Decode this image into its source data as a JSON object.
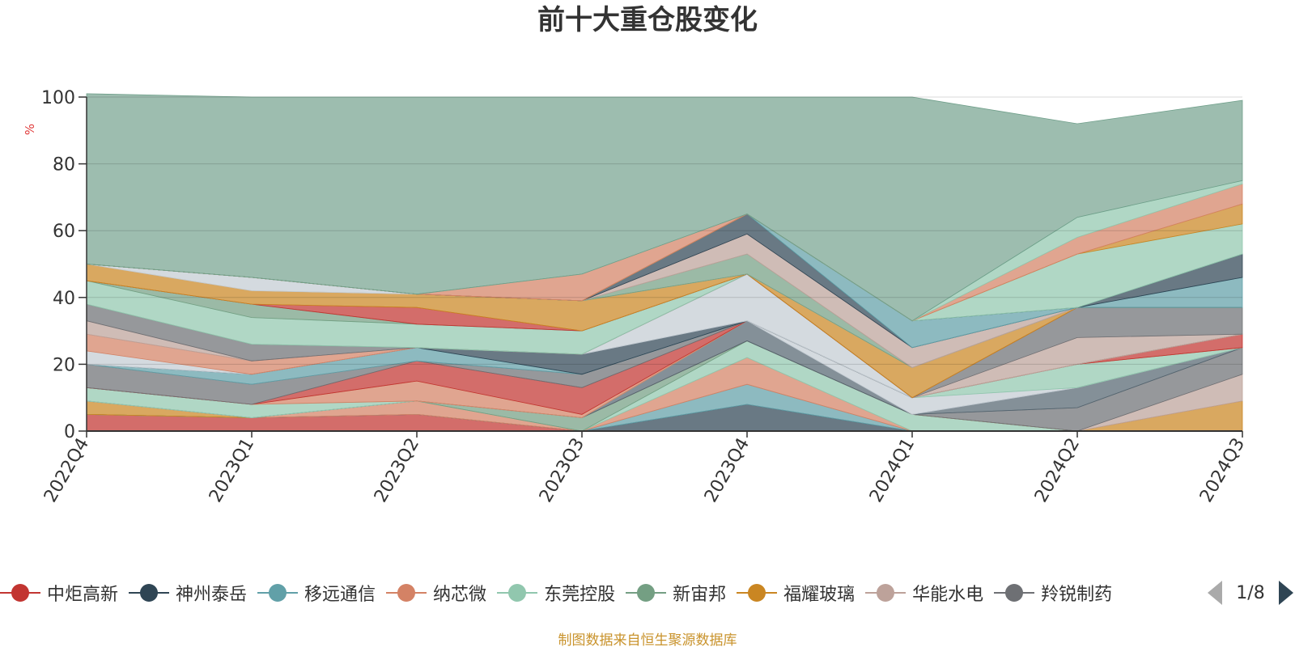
{
  "chart_data": {
    "type": "area",
    "stacked": true,
    "title": "前十大重仓股变化",
    "xlabel": "",
    "ylabel": "%",
    "ylim": [
      0,
      100
    ],
    "yticks": [
      0,
      20,
      40,
      60,
      80,
      100
    ],
    "grid": true,
    "categories": [
      "2022Q4",
      "2023Q1",
      "2023Q2",
      "2023Q3",
      "2023Q4",
      "2024Q1",
      "2024Q2",
      "2024Q3"
    ],
    "series": [
      {
        "name": "中炬高新",
        "color": "#c23531",
        "values": [
          5,
          4,
          5,
          0,
          0,
          0,
          0,
          0
        ]
      },
      {
        "name": "神州泰岳",
        "color": "#2f4554",
        "values": [
          0,
          0,
          0,
          0,
          8,
          0,
          0,
          0
        ]
      },
      {
        "name": "移远通信",
        "color": "#61a0a8",
        "values": [
          0,
          0,
          0,
          0,
          6,
          0,
          0,
          0
        ]
      },
      {
        "name": "纳芯微",
        "color": "#d48265",
        "values": [
          0,
          0,
          4,
          0,
          8,
          0,
          0,
          0
        ]
      },
      {
        "name": "东莞控股",
        "color": "#91c7ae",
        "values": [
          0,
          0,
          0,
          0,
          5,
          5,
          0,
          0
        ]
      },
      {
        "name": "新宙邦",
        "color": "#749f83",
        "values": [
          0,
          0,
          0,
          4,
          0,
          0,
          0,
          0
        ]
      },
      {
        "name": "福耀玻璃",
        "color": "#ca8622",
        "values": [
          4,
          0,
          0,
          0,
          0,
          0,
          0,
          9
        ]
      },
      {
        "name": "华能水电",
        "color": "#bda29a",
        "values": [
          0,
          0,
          0,
          0,
          0,
          0,
          0,
          8
        ]
      },
      {
        "name": "羚锐制药",
        "color": "#6e7074",
        "values": [
          0,
          0,
          0,
          0,
          0,
          0,
          7,
          8
        ]
      },
      {
        "name": "",
        "color": "#546570",
        "values": [
          0,
          0,
          0,
          0,
          6,
          0,
          6,
          0
        ]
      },
      {
        "name": "",
        "color": "#c4ccd3",
        "values": [
          0,
          0,
          0,
          0,
          0,
          5,
          0,
          0
        ]
      },
      {
        "name": "",
        "color": "#91c7ae",
        "values": [
          4,
          4,
          0,
          0,
          0,
          0,
          7,
          0
        ]
      },
      {
        "name": "",
        "color": "#d48265",
        "values": [
          0,
          0,
          6,
          1,
          0,
          0,
          0,
          0
        ]
      },
      {
        "name": "",
        "color": "#c23531",
        "values": [
          0,
          0,
          6,
          8,
          0,
          0,
          0,
          4
        ]
      },
      {
        "name": "",
        "color": "#6e7074",
        "values": [
          7,
          6,
          0,
          4,
          0,
          0,
          0,
          0
        ]
      },
      {
        "name": "",
        "color": "#61a0a8",
        "values": [
          0,
          3,
          4,
          0,
          0,
          0,
          0,
          0
        ]
      },
      {
        "name": "",
        "color": "#2f4554",
        "values": [
          0,
          0,
          0,
          6,
          0,
          0,
          0,
          0
        ]
      },
      {
        "name": "",
        "color": "#c4ccd3",
        "values": [
          4,
          0,
          0,
          0,
          14,
          0,
          0,
          0
        ]
      },
      {
        "name": "",
        "color": "#d48265",
        "values": [
          5,
          4,
          0,
          0,
          0,
          0,
          0,
          0
        ]
      },
      {
        "name": "",
        "color": "#bda29a",
        "values": [
          4,
          0,
          0,
          0,
          0,
          0,
          8,
          0
        ]
      },
      {
        "name": "",
        "color": "#6e7074",
        "values": [
          5,
          5,
          0,
          0,
          0,
          0,
          9,
          8
        ]
      },
      {
        "name": "",
        "color": "#91c7ae",
        "values": [
          7,
          8,
          7,
          7,
          0,
          0,
          0,
          0
        ]
      },
      {
        "name": "",
        "color": "#749f83",
        "values": [
          0,
          4,
          0,
          0,
          0,
          0,
          0,
          0
        ]
      },
      {
        "name": "",
        "color": "#c23531",
        "values": [
          0,
          0,
          5,
          0,
          0,
          0,
          0,
          0
        ]
      },
      {
        "name": "",
        "color": "#ca8622",
        "values": [
          5,
          4,
          4,
          9,
          0,
          9,
          0,
          0
        ]
      },
      {
        "name": "",
        "color": "#c4ccd3",
        "values": [
          0,
          4,
          0,
          0,
          0,
          0,
          0,
          0
        ]
      },
      {
        "name": "",
        "color": "#749f83",
        "values": [
          0,
          0,
          0,
          0,
          6,
          0,
          0,
          0
        ]
      },
      {
        "name": "",
        "color": "#bda29a",
        "values": [
          0,
          0,
          0,
          0,
          6,
          6,
          0,
          0
        ]
      },
      {
        "name": "",
        "color": "#2f4554",
        "values": [
          0,
          0,
          0,
          0,
          6,
          0,
          0,
          0
        ]
      },
      {
        "name": "",
        "color": "#61a0a8",
        "values": [
          0,
          0,
          0,
          0,
          0,
          8,
          0,
          9
        ]
      },
      {
        "name": "",
        "color": "#2f4554",
        "values": [
          0,
          0,
          0,
          0,
          0,
          0,
          0,
          7
        ]
      },
      {
        "name": "",
        "color": "#91c7ae",
        "values": [
          0,
          0,
          0,
          0,
          0,
          0,
          16,
          9
        ]
      },
      {
        "name": "",
        "color": "#ca8622",
        "values": [
          0,
          0,
          0,
          0,
          0,
          0,
          0,
          6
        ]
      },
      {
        "name": "",
        "color": "#d48265",
        "values": [
          0,
          0,
          0,
          8,
          0,
          0,
          5,
          6
        ]
      },
      {
        "name": "",
        "color": "#91c7ae",
        "values": [
          0,
          0,
          0,
          0,
          0,
          0,
          6,
          1
        ]
      },
      {
        "name": "",
        "color": "#6e9e89",
        "values": [
          51,
          54,
          59,
          53,
          35,
          67,
          28,
          24
        ]
      }
    ]
  },
  "legend": {
    "items": [
      {
        "label": "中炬高新",
        "color": "#c23531"
      },
      {
        "label": "神州泰岳",
        "color": "#2f4554"
      },
      {
        "label": "移远通信",
        "color": "#61a0a8"
      },
      {
        "label": "纳芯微",
        "color": "#d48265"
      },
      {
        "label": "东莞控股",
        "color": "#91c7ae"
      },
      {
        "label": "新宙邦",
        "color": "#749f83"
      },
      {
        "label": "福耀玻璃",
        "color": "#ca8622"
      },
      {
        "label": "华能水电",
        "color": "#bda29a"
      },
      {
        "label": "羚锐制药",
        "color": "#6e7074"
      }
    ],
    "page_text": "1/8"
  },
  "source_text": "制图数据来自恒生聚源数据库"
}
